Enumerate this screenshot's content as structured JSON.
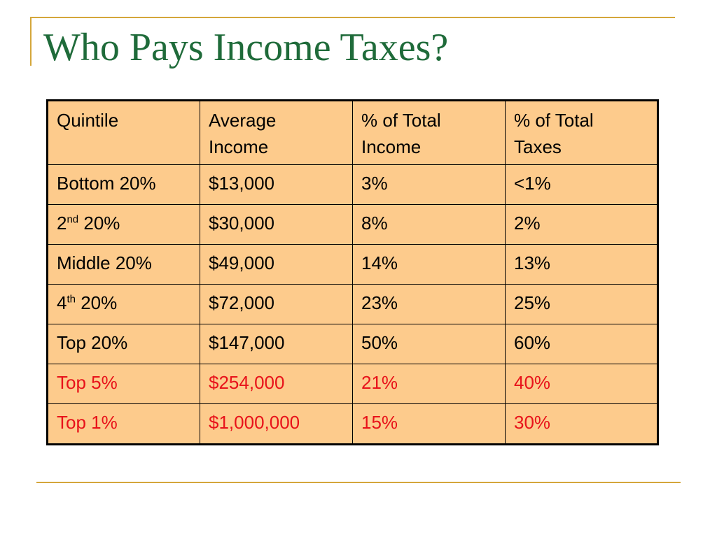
{
  "title": "Who Pays Income Taxes?",
  "table": {
    "headers": [
      [
        "Quintile"
      ],
      [
        "Average",
        "Income"
      ],
      [
        "% of Total",
        "Income"
      ],
      [
        "% of Total",
        "Taxes"
      ]
    ],
    "rows": [
      {
        "quintile": {
          "main": "Bottom 20%",
          "sup": "",
          "rest": ""
        },
        "avg_income": "$13,000",
        "pct_income": "3%",
        "pct_taxes": "<1%",
        "highlight": false
      },
      {
        "quintile": {
          "main": "2",
          "sup": "nd",
          "rest": " 20%"
        },
        "avg_income": "$30,000",
        "pct_income": "8%",
        "pct_taxes": "2%",
        "highlight": false
      },
      {
        "quintile": {
          "main": "Middle 20%",
          "sup": "",
          "rest": ""
        },
        "avg_income": "$49,000",
        "pct_income": "14%",
        "pct_taxes": "13%",
        "highlight": false
      },
      {
        "quintile": {
          "main": "4",
          "sup": "th",
          "rest": " 20%"
        },
        "avg_income": "$72,000",
        "pct_income": "23%",
        "pct_taxes": "25%",
        "highlight": false
      },
      {
        "quintile": {
          "main": "Top 20%",
          "sup": "",
          "rest": ""
        },
        "avg_income": "$147,000",
        "pct_income": "50%",
        "pct_taxes": "60%",
        "highlight": false
      },
      {
        "quintile": {
          "main": "Top 5%",
          "sup": "",
          "rest": ""
        },
        "avg_income": "$254,000",
        "pct_income": "21%",
        "pct_taxes": "40%",
        "highlight": true
      },
      {
        "quintile": {
          "main": "Top 1%",
          "sup": "",
          "rest": ""
        },
        "avg_income": "$1,000,000",
        "pct_income": "15%",
        "pct_taxes": "30%",
        "highlight": true
      }
    ]
  },
  "colors": {
    "title": "#1f6b3a",
    "frame": "#d4a63a",
    "table_fill": "#fdcb8c",
    "highlight_text": "#e8121a"
  }
}
